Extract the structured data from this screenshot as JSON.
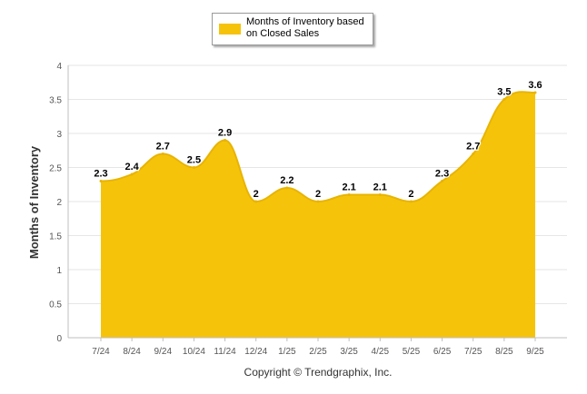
{
  "colors": {
    "series": "#f6c30b",
    "series_line": "#e8b400",
    "grid": "#e6e6e6",
    "axis": "#bfbfbf"
  },
  "legend": {
    "label": "Months of Inventory based on Closed Sales"
  },
  "copyright": "Copyright © Trendgraphix, Inc.",
  "chart_data": {
    "type": "area",
    "title": "",
    "xlabel": "",
    "ylabel": "Months of Inventory",
    "categories": [
      "7/24",
      "8/24",
      "9/24",
      "10/24",
      "11/24",
      "12/24",
      "1/25",
      "2/25",
      "3/25",
      "4/25",
      "5/25",
      "6/25",
      "7/25",
      "8/25",
      "9/25"
    ],
    "series": [
      {
        "name": "Months of Inventory based on Closed Sales",
        "values": [
          2.3,
          2.4,
          2.7,
          2.5,
          2.9,
          2,
          2.2,
          2,
          2.1,
          2.1,
          2,
          2.3,
          2.7,
          3.5,
          3.6
        ]
      }
    ],
    "data_labels": [
      "2.3",
      "2.4",
      "2.7",
      "2.5",
      "2.9",
      "2",
      "2.2",
      "2",
      "2.1",
      "2.1",
      "2",
      "2.3",
      "2.7",
      "3.5",
      "3.6"
    ],
    "ylim": [
      0,
      4
    ],
    "yticks": [
      "0",
      "0.5",
      "1",
      "1.5",
      "2",
      "2.5",
      "3",
      "3.5",
      "4"
    ],
    "grid": true,
    "legend_position": "top-center"
  }
}
